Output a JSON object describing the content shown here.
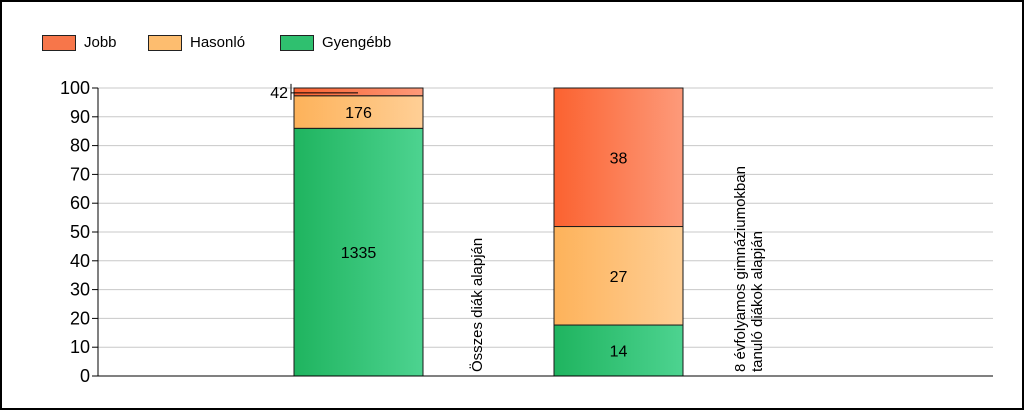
{
  "chart_data": {
    "type": "bar",
    "stacked": true,
    "ylim": [
      0,
      100
    ],
    "yticks": [
      0,
      10,
      20,
      30,
      40,
      50,
      60,
      70,
      80,
      90,
      100
    ],
    "grid": true,
    "legend_position": "top-left",
    "title": "",
    "xlabel": "",
    "ylabel": "",
    "categories": [
      "Összes diák alapján",
      "8 évfolyamos gimnáziumokban tanuló diákok alapján"
    ],
    "category_label_lines": [
      [
        "Összes diák alapján"
      ],
      [
        "8 évfolyamos gimnáziumokban",
        "tanuló diákok alapján"
      ]
    ],
    "series": [
      {
        "name": "Gyengébb",
        "percent": [
          86.0,
          17.7
        ],
        "labels": [
          "1335",
          "14"
        ]
      },
      {
        "name": "Hasonló",
        "percent": [
          11.3,
          34.2
        ],
        "labels": [
          "176",
          "27"
        ]
      },
      {
        "name": "Jobb",
        "percent": [
          2.7,
          48.1
        ],
        "labels": [
          "42",
          "38"
        ]
      }
    ],
    "legend": [
      {
        "name": "Jobb",
        "color": "#f7764a"
      },
      {
        "name": "Hasonló",
        "color": "#fdbd6f"
      },
      {
        "name": "Gyengébb",
        "color": "#2fc06f"
      }
    ],
    "colors": {
      "Gyengébb": [
        "#1fb45f",
        "#4dd390"
      ],
      "Hasonló": [
        "#fdb25a",
        "#ffcf96"
      ],
      "Jobb": [
        "#fb6230",
        "#fd9a7a"
      ]
    }
  }
}
